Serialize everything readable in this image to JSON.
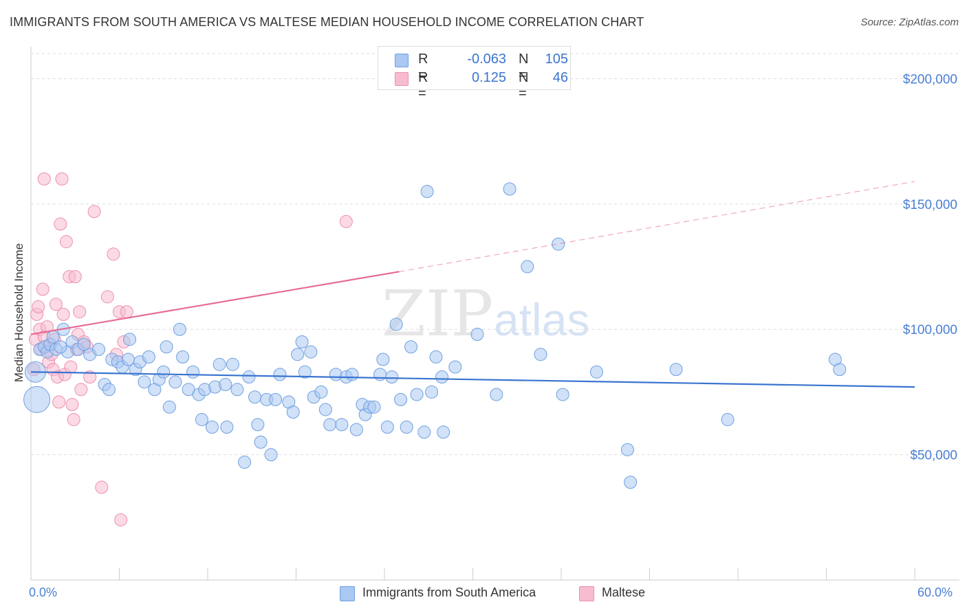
{
  "title": "IMMIGRANTS FROM SOUTH AMERICA VS MALTESE MEDIAN HOUSEHOLD INCOME CORRELATION CHART",
  "source": "Source: ZipAtlas.com",
  "watermark": {
    "zip": "ZIP",
    "atlas": "atlas"
  },
  "colors": {
    "blue_fill": "#a9c8f2",
    "blue_stroke": "#6f9fe0",
    "blue_line": "#3a74d0",
    "pink_fill": "#f7bcd0",
    "pink_stroke": "#ec8fae",
    "pink_line": "#e66a95",
    "grid": "#dcdcdc",
    "tick_text": "#4a7fd4"
  },
  "legend_top": [
    {
      "r_label": "R =",
      "r_value": "-0.063",
      "n_label": "N =",
      "n_value": "105"
    },
    {
      "r_label": "R =",
      "r_value": "0.125",
      "n_label": "N =",
      "n_value": "46"
    }
  ],
  "chart_data": {
    "type": "scatter",
    "title": "IMMIGRANTS FROM SOUTH AMERICA VS MALTESE MEDIAN HOUSEHOLD INCOME CORRELATION CHART",
    "xlabel": "",
    "ylabel": "Median Household Income",
    "xlim": [
      0,
      60
    ],
    "ylim": [
      0,
      210000
    ],
    "x_tick_labels": [
      "0.0%",
      "60.0%"
    ],
    "y_ticks": [
      50000,
      100000,
      150000,
      200000
    ],
    "y_tick_labels": [
      "$50,000",
      "$100,000",
      "$150,000",
      "$200,000"
    ],
    "series": [
      {
        "name": "Immigrants from South America",
        "color": "#6f9fe0",
        "trend": {
          "x": [
            0,
            60
          ],
          "y": [
            83000,
            77000
          ],
          "style": "solid"
        },
        "points": [
          [
            0.3,
            83000
          ],
          [
            0.4,
            72000
          ],
          [
            0.6,
            92000
          ],
          [
            0.9,
            93000
          ],
          [
            1.1,
            91000
          ],
          [
            1.3,
            94000
          ],
          [
            1.5,
            97000
          ],
          [
            1.7,
            92000
          ],
          [
            2.2,
            100000
          ],
          [
            2.5,
            91000
          ],
          [
            2.8,
            95000
          ],
          [
            3.2,
            92000
          ],
          [
            3.6,
            94000
          ],
          [
            4.0,
            90000
          ],
          [
            4.6,
            92000
          ],
          [
            5.0,
            78000
          ],
          [
            5.3,
            76000
          ],
          [
            5.5,
            88000
          ],
          [
            5.9,
            87000
          ],
          [
            6.2,
            85000
          ],
          [
            6.6,
            88000
          ],
          [
            6.7,
            96000
          ],
          [
            7.1,
            84000
          ],
          [
            7.4,
            87000
          ],
          [
            7.7,
            79000
          ],
          [
            8.0,
            89000
          ],
          [
            8.4,
            76000
          ],
          [
            8.7,
            80000
          ],
          [
            9.0,
            83000
          ],
          [
            9.2,
            93000
          ],
          [
            9.4,
            69000
          ],
          [
            9.8,
            79000
          ],
          [
            10.1,
            100000
          ],
          [
            10.3,
            89000
          ],
          [
            10.7,
            76000
          ],
          [
            11.0,
            83000
          ],
          [
            11.4,
            74000
          ],
          [
            11.6,
            64000
          ],
          [
            11.8,
            76000
          ],
          [
            12.3,
            61000
          ],
          [
            12.5,
            77000
          ],
          [
            12.8,
            86000
          ],
          [
            13.2,
            78000
          ],
          [
            13.3,
            61000
          ],
          [
            13.7,
            86000
          ],
          [
            14.0,
            76000
          ],
          [
            14.5,
            47000
          ],
          [
            14.8,
            81000
          ],
          [
            15.2,
            73000
          ],
          [
            15.4,
            62000
          ],
          [
            15.6,
            55000
          ],
          [
            16.0,
            72000
          ],
          [
            16.3,
            50000
          ],
          [
            16.6,
            72000
          ],
          [
            16.9,
            82000
          ],
          [
            17.5,
            71000
          ],
          [
            17.8,
            67000
          ],
          [
            18.1,
            90000
          ],
          [
            18.4,
            95000
          ],
          [
            18.6,
            83000
          ],
          [
            19.0,
            91000
          ],
          [
            19.2,
            73000
          ],
          [
            19.7,
            75000
          ],
          [
            20.0,
            68000
          ],
          [
            20.3,
            62000
          ],
          [
            20.7,
            82000
          ],
          [
            21.1,
            62000
          ],
          [
            21.4,
            81000
          ],
          [
            21.8,
            82000
          ],
          [
            22.1,
            60000
          ],
          [
            22.5,
            70000
          ],
          [
            22.7,
            66000
          ],
          [
            23.0,
            69000
          ],
          [
            23.3,
            69000
          ],
          [
            23.7,
            82000
          ],
          [
            23.9,
            88000
          ],
          [
            24.2,
            61000
          ],
          [
            24.5,
            81000
          ],
          [
            24.8,
            102000
          ],
          [
            25.1,
            72000
          ],
          [
            25.5,
            61000
          ],
          [
            25.8,
            93000
          ],
          [
            26.2,
            74000
          ],
          [
            26.7,
            59000
          ],
          [
            26.9,
            155000
          ],
          [
            27.2,
            75000
          ],
          [
            27.5,
            89000
          ],
          [
            27.9,
            81000
          ],
          [
            28.0,
            59000
          ],
          [
            28.8,
            85000
          ],
          [
            30.3,
            98000
          ],
          [
            31.6,
            74000
          ],
          [
            32.5,
            156000
          ],
          [
            33.7,
            125000
          ],
          [
            34.6,
            90000
          ],
          [
            35.8,
            134000
          ],
          [
            36.1,
            74000
          ],
          [
            38.4,
            83000
          ],
          [
            40.5,
            52000
          ],
          [
            40.7,
            39000
          ],
          [
            43.8,
            84000
          ],
          [
            47.3,
            64000
          ],
          [
            54.6,
            88000
          ],
          [
            54.9,
            84000
          ],
          [
            2.0,
            93000
          ]
        ]
      },
      {
        "name": "Maltese",
        "color": "#ec8fae",
        "trend": {
          "x": [
            0,
            25
          ],
          "y": [
            98000,
            123000
          ],
          "style": "solid",
          "extended": {
            "x": [
              25,
              60
            ],
            "y": [
              123000,
              159000
            ],
            "style": "dashed"
          }
        },
        "points": [
          [
            0.2,
            84000
          ],
          [
            0.3,
            96000
          ],
          [
            0.4,
            106000
          ],
          [
            0.5,
            109000
          ],
          [
            0.6,
            100000
          ],
          [
            0.7,
            92000
          ],
          [
            0.8,
            116000
          ],
          [
            0.9,
            97000
          ],
          [
            1.0,
            93000
          ],
          [
            1.1,
            101000
          ],
          [
            1.2,
            87000
          ],
          [
            1.3,
            94000
          ],
          [
            1.4,
            90000
          ],
          [
            1.5,
            84000
          ],
          [
            1.6,
            96000
          ],
          [
            1.7,
            110000
          ],
          [
            1.8,
            81000
          ],
          [
            1.9,
            71000
          ],
          [
            2.0,
            142000
          ],
          [
            2.1,
            160000
          ],
          [
            2.2,
            106000
          ],
          [
            2.3,
            82000
          ],
          [
            2.4,
            135000
          ],
          [
            2.6,
            121000
          ],
          [
            2.7,
            85000
          ],
          [
            2.8,
            70000
          ],
          [
            2.9,
            64000
          ],
          [
            3.0,
            121000
          ],
          [
            3.1,
            92000
          ],
          [
            3.2,
            98000
          ],
          [
            3.3,
            107000
          ],
          [
            3.4,
            76000
          ],
          [
            3.6,
            95000
          ],
          [
            3.8,
            93000
          ],
          [
            4.0,
            81000
          ],
          [
            4.3,
            147000
          ],
          [
            4.8,
            37000
          ],
          [
            5.2,
            113000
          ],
          [
            5.6,
            130000
          ],
          [
            5.8,
            90000
          ],
          [
            6.0,
            107000
          ],
          [
            6.1,
            24000
          ],
          [
            6.3,
            95000
          ],
          [
            6.5,
            107000
          ],
          [
            21.4,
            143000
          ],
          [
            0.9,
            160000
          ]
        ]
      }
    ]
  },
  "x_axis": {
    "left_label": "0.0%",
    "right_label": "60.0%"
  },
  "legend_bottom": [
    {
      "label": "Immigrants from South America"
    },
    {
      "label": "Maltese"
    }
  ]
}
